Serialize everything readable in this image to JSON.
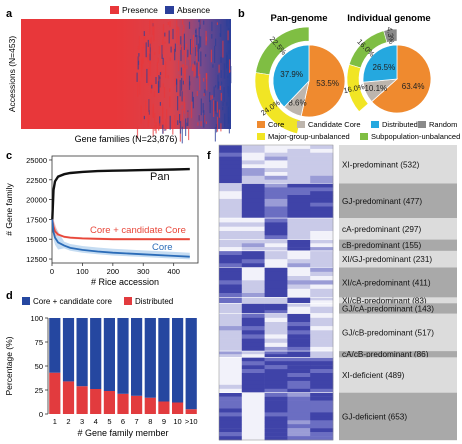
{
  "panels": {
    "a": {
      "letter": "a",
      "legend": [
        {
          "label": "Presence",
          "color": "#e8373a"
        },
        {
          "label": "Absence",
          "color": "#2b3f9a"
        }
      ],
      "ylabel": "Accessions (N=453)",
      "xlabel": "Gene families (N=23,876)"
    },
    "b": {
      "letter": "b",
      "title_left": "Pan-genome",
      "title_right": "Individual genome",
      "legend": [
        {
          "label": "Core",
          "color": "#ef8a2f"
        },
        {
          "label": "Candidate Core",
          "color": "#bdb5ad"
        },
        {
          "label": "Distributed",
          "color": "#25a8df"
        },
        {
          "label": "Random",
          "color": "#8a8a8a"
        },
        {
          "label": "Major-group-unbalanced",
          "color": "#f1e524"
        },
        {
          "label": "Subpopulation-unbalanced",
          "color": "#7fbe43"
        }
      ]
    },
    "c": {
      "letter": "c"
    },
    "d": {
      "letter": "d"
    },
    "f": {
      "letter": "f"
    }
  },
  "chart_data": [
    {
      "type": "heatmap",
      "panel": "a",
      "xlabel": "Gene families (N=23,876)",
      "ylabel": "Accessions (N=453)",
      "categories": [
        "Presence",
        "Absence"
      ]
    },
    {
      "type": "pie",
      "panel": "b",
      "title": "Pan-genome",
      "slices": [
        {
          "name": "Core",
          "value": 53.5,
          "label": "53.5%",
          "color": "#ef8a2f"
        },
        {
          "name": "Candidate Core",
          "value": 8.6,
          "label": "8.6%",
          "color": "#bdb5ad"
        },
        {
          "name": "Distributed",
          "value": 37.9,
          "label": "37.9%",
          "color": "#25a8df"
        }
      ],
      "outer_ring": [
        {
          "name": "Subpopulation-unbalanced",
          "value": 22.5,
          "label": "22.5%",
          "color": "#7fbe43"
        },
        {
          "name": "Major-group-unbalanced",
          "value": 24.0,
          "label": "24.0%",
          "color": "#f1e524"
        }
      ]
    },
    {
      "type": "pie",
      "panel": "b",
      "title": "Individual genome",
      "slices": [
        {
          "name": "Core",
          "value": 63.4,
          "label": "63.4%",
          "color": "#ef8a2f"
        },
        {
          "name": "Candidate Core",
          "value": 10.1,
          "label": "10.1%",
          "color": "#bdb5ad"
        },
        {
          "name": "Distributed",
          "value": 26.5,
          "label": "26.5%",
          "color": "#25a8df"
        }
      ],
      "outer_ring": [
        {
          "name": "Random",
          "value": 4.3,
          "label": "4.3%",
          "color": "#8a8a8a"
        },
        {
          "name": "Subpopulation-unbalanced",
          "value": 16.0,
          "label": "16.0%",
          "color": "#7fbe43"
        },
        {
          "name": "Major-group-unbalanced",
          "value": 16.0,
          "label": "16.0%",
          "color": "#f1e524"
        }
      ]
    },
    {
      "type": "line",
      "panel": "c",
      "xlabel": "# Rice accession",
      "ylabel": "# Gene family",
      "xlim": [
        0,
        480
      ],
      "ylim": [
        12000,
        25500
      ],
      "xticks": [
        "0",
        "100",
        "200",
        "300",
        "400"
      ],
      "yticks": [
        "12500",
        "15000",
        "17500",
        "20000",
        "22500",
        "25000"
      ],
      "series": [
        {
          "name": "Pan",
          "color": "#111111",
          "x": [
            1,
            5,
            10,
            20,
            40,
            60,
            100,
            150,
            200,
            300,
            400,
            453
          ],
          "y": [
            17500,
            21200,
            22300,
            22900,
            23200,
            23350,
            23500,
            23600,
            23650,
            23720,
            23800,
            23850
          ]
        },
        {
          "name": "Core + candidate Core",
          "color": "#e8473a",
          "x": [
            1,
            5,
            10,
            20,
            40,
            60,
            100,
            150,
            200,
            300,
            400,
            453
          ],
          "y": [
            17500,
            16600,
            16000,
            15600,
            15300,
            15200,
            15100,
            15050,
            15000,
            15000,
            15000,
            15000
          ]
        },
        {
          "name": "Core",
          "color": "#2b6cb8",
          "x": [
            1,
            5,
            10,
            20,
            40,
            60,
            100,
            150,
            200,
            300,
            400,
            453
          ],
          "y": [
            17500,
            15900,
            15200,
            14600,
            14200,
            13900,
            13650,
            13450,
            13300,
            13100,
            12900,
            12800
          ]
        }
      ]
    },
    {
      "type": "bar",
      "panel": "d",
      "stacked": true,
      "xlabel": "# Gene family member",
      "ylabel": "Percentage (%)",
      "ylim": [
        0,
        100
      ],
      "yticks": [
        "0",
        "25",
        "50",
        "75",
        "100"
      ],
      "categories": [
        "1",
        "2",
        "3",
        "4",
        "5",
        "6",
        "7",
        "8",
        "9",
        "10",
        ">10"
      ],
      "series": [
        {
          "name": "Distributed",
          "color": "#e23b3e",
          "values": [
            43,
            34,
            29,
            26,
            24,
            21,
            19,
            17,
            13,
            12,
            5
          ]
        },
        {
          "name": "Core + candidate core",
          "color": "#2547a0",
          "values": [
            57,
            66,
            71,
            74,
            76,
            79,
            81,
            83,
            87,
            88,
            95
          ]
        }
      ]
    },
    {
      "type": "heatmap",
      "panel": "f",
      "groups": [
        {
          "label": "XI-predominant (532)",
          "weight": 532,
          "shade": "#dcdcdc"
        },
        {
          "label": "GJ-predominant (477)",
          "weight": 477,
          "shade": "#a9a9a9"
        },
        {
          "label": "cA-predominant (297)",
          "weight": 297,
          "shade": "#dcdcdc"
        },
        {
          "label": "cB-predominant (155)",
          "weight": 155,
          "shade": "#a9a9a9"
        },
        {
          "label": "XI/GJ-predominant (231)",
          "weight": 231,
          "shade": "#dcdcdc"
        },
        {
          "label": "XI/cA-predominant (411)",
          "weight": 411,
          "shade": "#a9a9a9"
        },
        {
          "label": "XI/cB-predominant (83)",
          "weight": 83,
          "shade": "#dcdcdc"
        },
        {
          "label": "GJ/cA-predominant (143)",
          "weight": 143,
          "shade": "#a9a9a9"
        },
        {
          "label": "GJ/cB-predominant (517)",
          "weight": 517,
          "shade": "#dcdcdc"
        },
        {
          "label": "cA/cB-predominant (86)",
          "weight": 86,
          "shade": "#a9a9a9"
        },
        {
          "label": "XI-deficient (489)",
          "weight": 489,
          "shade": "#dcdcdc"
        },
        {
          "label": "GJ-deficient (653)",
          "weight": 653,
          "shade": "#a9a9a9"
        }
      ]
    }
  ]
}
